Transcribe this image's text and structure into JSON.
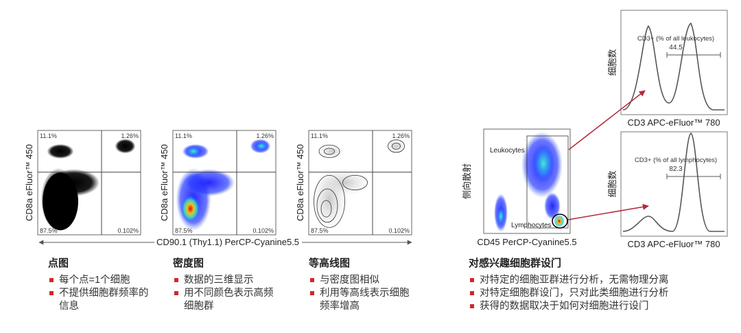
{
  "panels": [
    {
      "y_label": "CD8a eFluor™ 450",
      "quadrants": [
        "11.1%",
        "1.26%",
        "87.5%",
        "0.102%"
      ],
      "title": "点图",
      "bullets": [
        "每个点=1个细胞",
        "不提供细胞群频率的信息"
      ]
    },
    {
      "y_label": "CD8a eFluor™ 450",
      "quadrants": [
        "11.1%",
        "1.26%",
        "87.5%",
        "0.102%"
      ],
      "title": "密度图",
      "bullets": [
        "数据的三维显示",
        "用不同颜色表示高频细胞群"
      ]
    },
    {
      "y_label": "CD8a eFluor™ 450",
      "quadrants": [
        "11.1%",
        "1.26%",
        "87.5%",
        "0.102%"
      ],
      "title": "等高线图",
      "bullets": [
        "与密度图相似",
        "利用等高线表示细胞频率增高"
      ]
    }
  ],
  "shared_x_label": "CD90.1 (Thy1.1) PerCP-Cyanine5.5",
  "gating": {
    "y_label": "侧向散射",
    "x_label": "CD45 PerCP-Cyanine5.5",
    "gates": [
      "Leukocytes",
      "Lymphocytes"
    ],
    "title": "对感兴趣细胞群设门",
    "bullets": [
      "对特定的细胞亚群进行分析，无需物理分离",
      "对特定细胞群设门，只对此类细胞进行分析",
      "获得的数据取决于如何对细胞进行设门"
    ]
  },
  "histograms": [
    {
      "y_label": "细胞数",
      "x_label": "CD3 APC-eFluor™ 780",
      "annotation": "CD3+ (% of all leukocytes)",
      "value": "44.5"
    },
    {
      "y_label": "细胞数",
      "x_label": "CD3 APC-eFluor™ 780",
      "annotation": "CD3+ (% of all lymphocytes)",
      "value": "82.3"
    }
  ]
}
